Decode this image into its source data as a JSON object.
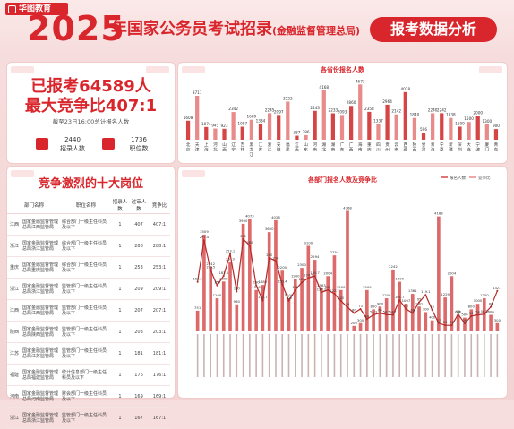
{
  "header": {
    "logo_text": "华图教育",
    "year": "2025",
    "title": "年国家公务员考试招录",
    "subtitle": "(金融监督管理总局)",
    "badge": "报考数据分析"
  },
  "stats": {
    "applied_line": "已报考64589人",
    "ratio_line": "最大竞争比407:1",
    "note": "截至23日16:00总计报名人数",
    "recruit_value": "2440",
    "recruit_label": "招录人数",
    "positions_value": "1736",
    "positions_label": "职位数"
  },
  "top_jobs": {
    "title": "竞争激烈的十大岗位",
    "headers": [
      "部门名称",
      "职位名称",
      "招录人数",
      "过审人数",
      "竞争比"
    ],
    "rows": [
      {
        "region": "江西",
        "dept": "国家金融监督管理总局江西监管局",
        "pos": "综合部门一级主任科员及以下",
        "recruit": "1",
        "applied": "407",
        "ratio": "407:1"
      },
      {
        "region": "浙江",
        "dept": "国家金融监督管理总局浙江监管局",
        "pos": "综合部门一级主任科员及以下",
        "recruit": "1",
        "applied": "288",
        "ratio": "288:1"
      },
      {
        "region": "重庆",
        "dept": "国家金融监督管理总局重庆监管局",
        "pos": "综合部门一级主任科员及以下",
        "recruit": "1",
        "applied": "253",
        "ratio": "253:1"
      },
      {
        "region": "浙江",
        "dept": "国家金融监督管理总局浙江监管局",
        "pos": "监管部门一级主任科员及以下",
        "recruit": "1",
        "applied": "209",
        "ratio": "209:1"
      },
      {
        "region": "江西",
        "dept": "国家金融监督管理总局江西监管局",
        "pos": "监管部门一级主任科员及以下",
        "recruit": "1",
        "applied": "207",
        "ratio": "207:1"
      },
      {
        "region": "陕西",
        "dept": "国家金融监督管理总局陕西监管局",
        "pos": "监管部门一级主任科员及以下",
        "recruit": "1",
        "applied": "203",
        "ratio": "203:1"
      },
      {
        "region": "江苏",
        "dept": "国家金融监督管理总局江苏监管局",
        "pos": "监管部门一级主任科员及以下",
        "recruit": "1",
        "applied": "181",
        "ratio": "181:1"
      },
      {
        "region": "福建",
        "dept": "国家金融监督管理总局福建监管局",
        "pos": "统计信息部门一级主任科员及以下",
        "recruit": "1",
        "applied": "176",
        "ratio": "176:1"
      },
      {
        "region": "河南",
        "dept": "国家金融监督管理总局河南监管局",
        "pos": "财会部门一级主任科员及以下",
        "recruit": "1",
        "applied": "169",
        "ratio": "169:1"
      },
      {
        "region": "浙江",
        "dept": "国家金融监督管理总局浙江监管局",
        "pos": "监管部门一级主任科员及以下",
        "recruit": "1",
        "applied": "167",
        "ratio": "167:1"
      }
    ]
  },
  "chart_data": [
    {
      "type": "bar",
      "title": "各省份报名人数",
      "categories": [
        "北京",
        "天津",
        "上海",
        "河北",
        "山西",
        "辽宁",
        "吉林",
        "黑龙江",
        "江苏",
        "浙江",
        "安徽",
        "福建",
        "江西",
        "山东",
        "河南",
        "湖北",
        "湖南",
        "广东",
        "广西",
        "海南",
        "重庆",
        "四川",
        "贵州",
        "云南",
        "西藏",
        "陕西",
        "甘肃",
        "青海",
        "宁夏",
        "新疆",
        "深圳",
        "大连",
        "宁波",
        "厦门",
        "青岛"
      ],
      "values": [
        1608,
        3711,
        1074,
        945,
        923,
        2342,
        1097,
        1689,
        1334,
        2245,
        2097,
        3222,
        337,
        386,
        2443,
        4168,
        2233,
        2093,
        2860,
        4673,
        2358,
        1337,
        2964,
        2142,
        4028,
        1840,
        596,
        2240,
        2242,
        1838,
        1100,
        1500,
        2000,
        1300,
        900
      ],
      "ylim": [
        0,
        5000
      ]
    },
    {
      "type": "bar_line",
      "title": "各部门报名人数及竞争比",
      "series": [
        {
          "name": "报名人数",
          "type": "bar",
          "values": [
            751,
            3509,
            2342,
            1200,
            1808,
            2513,
            980,
            3900,
            4073,
            1500,
            1683,
            3600,
            4028,
            2200,
            1200,
            1900,
            2300,
            3100,
            2594,
            1563,
            2004,
            2754,
            1500,
            4368,
            200,
            300,
            1500,
            800,
            900,
            1200,
            2242,
            1800,
            1007,
            1361,
            900,
            700,
            400,
            4168,
            1229,
            2004,
            600,
            500,
            800,
            1000,
            1200,
            600,
            300
          ]
        },
        {
          "name": "竞争比",
          "type": "line",
          "values": [
            161.5,
            297.4,
            199.5,
            150,
            181.3,
            253.1,
            130,
            301,
            280,
            150,
            101.7,
            240,
            230,
            153.4,
            100,
            135,
            160,
            174.5,
            180.7,
            127.3,
            135,
            122.7,
            100,
            79,
            60,
            73,
            40,
            54.3,
            60,
            54.5,
            54.1,
            101.7,
            73,
            60,
            95,
            119.1,
            70,
            27,
            20,
            20,
            56,
            26,
            50,
            54,
            56.2,
            80,
            132.1
          ]
        }
      ],
      "ylim": [
        0,
        5000
      ],
      "legend": "top-right"
    }
  ]
}
